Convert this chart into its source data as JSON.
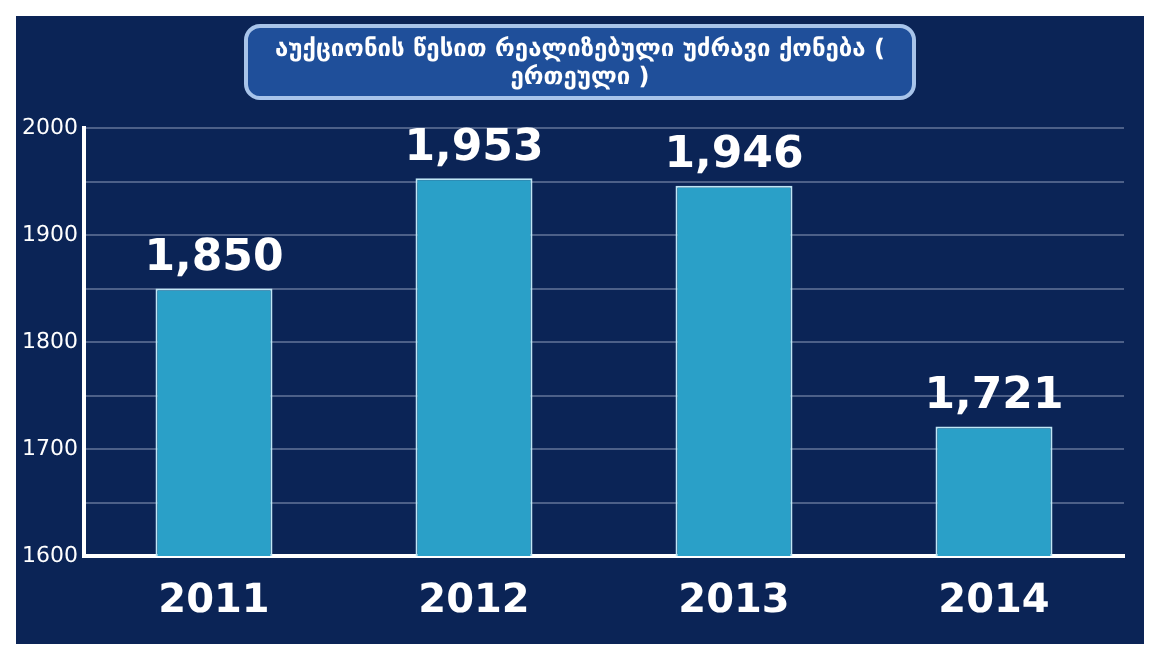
{
  "chart_data": {
    "type": "bar",
    "title": "აუქციონის წესით რეალიზებული უძრავი ქონება ( ერთეული )",
    "categories": [
      "2011",
      "2012",
      "2013",
      "2014"
    ],
    "values": [
      1850,
      1953,
      1946,
      1721
    ],
    "value_labels": [
      "1,850",
      "1,953",
      "1,946",
      "1,721"
    ],
    "color": "#2aa0c8",
    "ylim": [
      1600,
      2000
    ],
    "yticks": [
      1600,
      {
        "value": 1650,
        "label": null
      },
      1700,
      {
        "value": 1750,
        "label": null
      },
      1800,
      {
        "value": 1850,
        "label": null
      },
      1900,
      {
        "value": 1950,
        "label": null
      },
      2000
    ],
    "grid": "y",
    "legend": false
  }
}
